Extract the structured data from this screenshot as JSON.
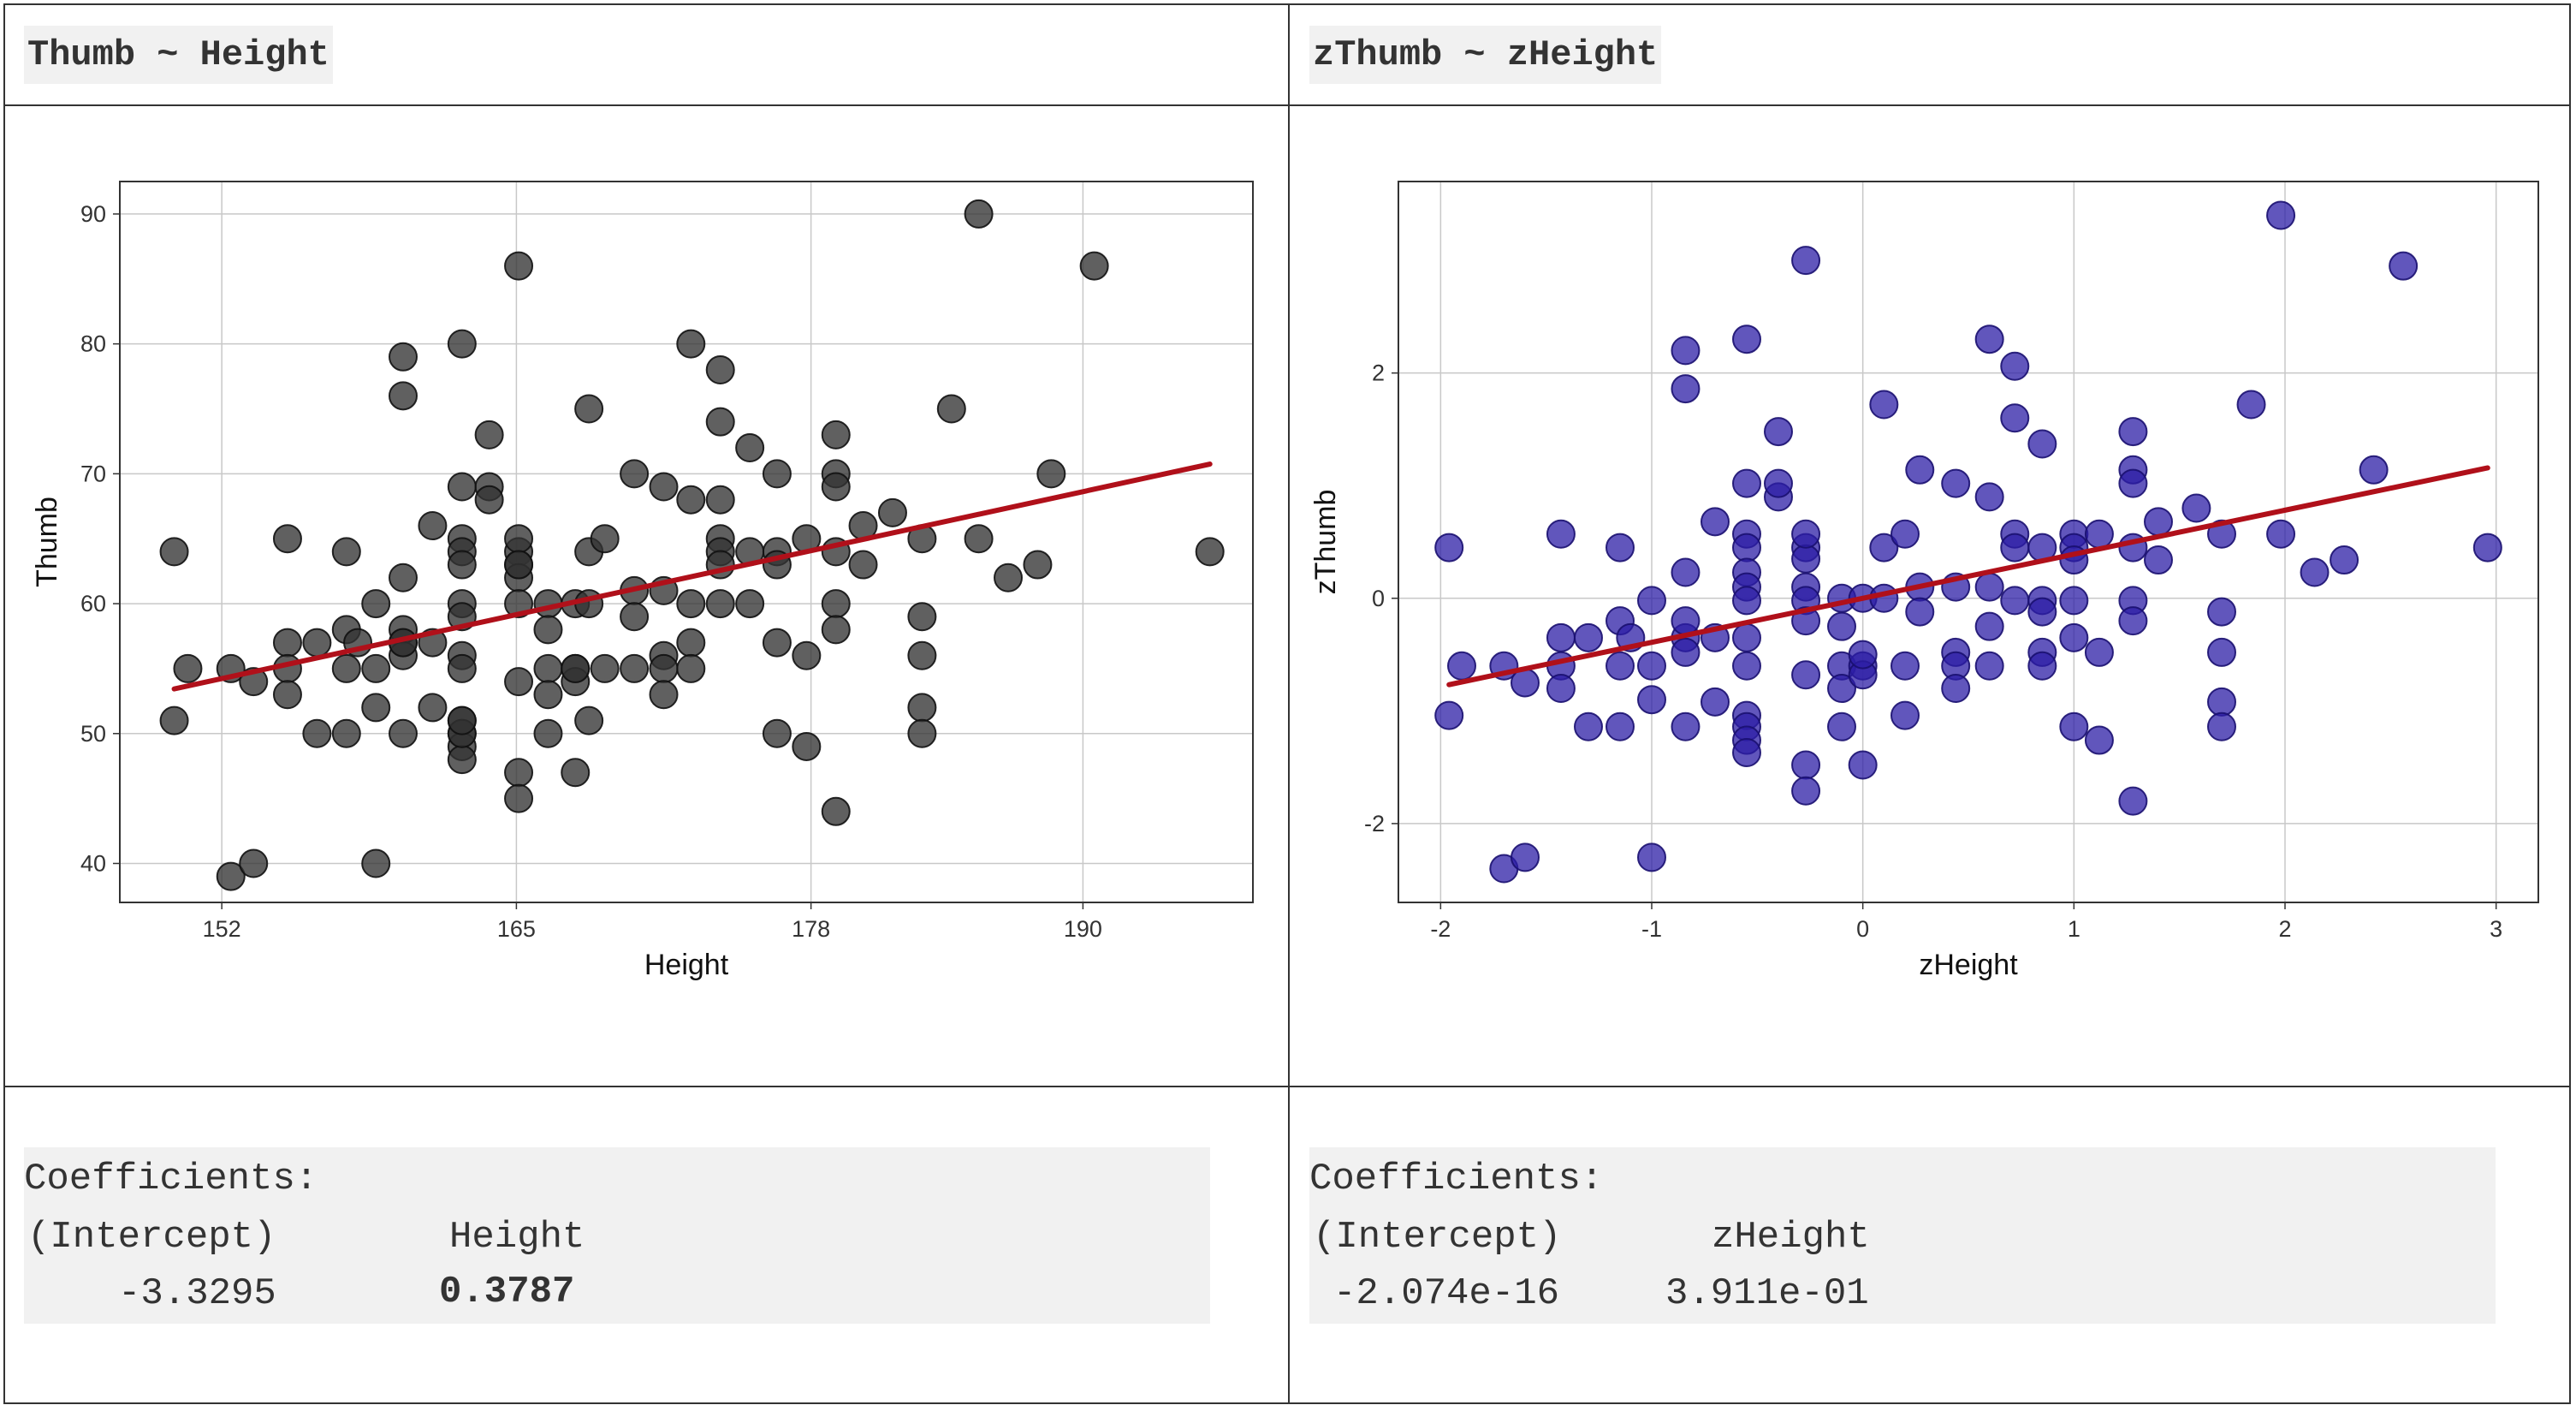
{
  "panels": {
    "left": {
      "title": "Thumb ~ Height",
      "coef": {
        "header": "Coefficients:",
        "col1_label": "(Intercept)",
        "col2_label": "Height",
        "col1_value": "-3.3295",
        "col2_value": "0.3787"
      }
    },
    "right": {
      "title": "zThumb ~ zHeight",
      "coef": {
        "header": "Coefficients:",
        "col1_label": "(Intercept)",
        "col2_label": "zHeight",
        "col1_value": "-2.074e-16",
        "col2_value": "3.911e-01"
      }
    }
  },
  "colors": {
    "left_point": "#333333",
    "right_point": "#2c1ea6",
    "right_point_stroke": "#1a1070",
    "line": "#b0101a"
  },
  "chart_data": [
    {
      "type": "scatter",
      "title": "Thumb ~ Height",
      "xlabel": "Height",
      "ylabel": "Thumb",
      "xlim": [
        147.5,
        197.5
      ],
      "ylim": [
        37,
        92.5
      ],
      "xticks": [
        152,
        165,
        178,
        190
      ],
      "yticks": [
        40,
        50,
        60,
        70,
        80,
        90
      ],
      "fit": {
        "intercept": -3.3295,
        "slope": 0.3787,
        "x_range": [
          149.9,
          195.6
        ]
      },
      "points": [
        [
          149.9,
          64
        ],
        [
          149.9,
          51
        ],
        [
          150.5,
          55
        ],
        [
          152.4,
          39
        ],
        [
          152.4,
          55
        ],
        [
          153.4,
          40
        ],
        [
          153.4,
          54
        ],
        [
          154.9,
          57
        ],
        [
          154.9,
          65
        ],
        [
          154.9,
          55
        ],
        [
          154.9,
          53
        ],
        [
          156.2,
          50
        ],
        [
          156.2,
          57
        ],
        [
          157.5,
          55
        ],
        [
          157.5,
          64
        ],
        [
          157.5,
          58
        ],
        [
          157.5,
          50
        ],
        [
          158,
          57
        ],
        [
          158.8,
          60
        ],
        [
          158.8,
          52
        ],
        [
          158.8,
          55
        ],
        [
          158.8,
          40
        ],
        [
          160,
          79
        ],
        [
          160,
          76
        ],
        [
          160,
          62
        ],
        [
          160,
          57
        ],
        [
          160,
          50
        ],
        [
          160,
          58
        ],
        [
          160,
          56
        ],
        [
          160,
          57
        ],
        [
          161.3,
          66
        ],
        [
          161.3,
          57
        ],
        [
          161.3,
          52
        ],
        [
          162.6,
          80
        ],
        [
          162.6,
          69
        ],
        [
          162.6,
          65
        ],
        [
          162.6,
          64
        ],
        [
          162.6,
          63
        ],
        [
          162.6,
          60
        ],
        [
          162.6,
          59
        ],
        [
          162.6,
          56
        ],
        [
          162.6,
          55
        ],
        [
          162.6,
          51
        ],
        [
          162.6,
          50
        ],
        [
          162.6,
          49
        ],
        [
          162.6,
          48
        ],
        [
          162.6,
          50
        ],
        [
          162.6,
          51
        ],
        [
          163.8,
          73
        ],
        [
          163.8,
          69
        ],
        [
          163.8,
          68
        ],
        [
          165.1,
          86
        ],
        [
          165.1,
          64
        ],
        [
          165.1,
          63
        ],
        [
          165.1,
          62
        ],
        [
          165.1,
          60
        ],
        [
          165.1,
          65
        ],
        [
          165.1,
          47
        ],
        [
          165.1,
          45
        ],
        [
          165.1,
          54
        ],
        [
          165.1,
          63
        ],
        [
          166.4,
          60
        ],
        [
          166.4,
          58
        ],
        [
          166.4,
          55
        ],
        [
          166.4,
          53
        ],
        [
          166.4,
          50
        ],
        [
          167.6,
          60
        ],
        [
          167.6,
          55
        ],
        [
          167.6,
          54
        ],
        [
          167.6,
          47
        ],
        [
          167.6,
          55
        ],
        [
          168.2,
          75
        ],
        [
          168.2,
          64
        ],
        [
          168.2,
          60
        ],
        [
          168.9,
          65
        ],
        [
          168.9,
          55
        ],
        [
          168.2,
          51
        ],
        [
          170.2,
          70
        ],
        [
          170.2,
          61
        ],
        [
          170.2,
          59
        ],
        [
          170.2,
          55
        ],
        [
          171.5,
          69
        ],
        [
          171.5,
          61
        ],
        [
          171.5,
          56
        ],
        [
          171.5,
          55
        ],
        [
          171.5,
          53
        ],
        [
          172.7,
          80
        ],
        [
          172.7,
          68
        ],
        [
          172.7,
          60
        ],
        [
          172.7,
          57
        ],
        [
          172.7,
          55
        ],
        [
          174,
          78
        ],
        [
          174,
          74
        ],
        [
          174,
          68
        ],
        [
          174,
          65
        ],
        [
          174,
          64
        ],
        [
          174,
          63
        ],
        [
          174,
          60
        ],
        [
          175.3,
          72
        ],
        [
          175.3,
          64
        ],
        [
          175.3,
          60
        ],
        [
          176.5,
          70
        ],
        [
          176.5,
          64
        ],
        [
          176.5,
          63
        ],
        [
          176.5,
          57
        ],
        [
          176.5,
          50
        ],
        [
          177.8,
          65
        ],
        [
          177.8,
          56
        ],
        [
          177.8,
          49
        ],
        [
          179.1,
          73
        ],
        [
          179.1,
          70
        ],
        [
          179.1,
          69
        ],
        [
          179.1,
          64
        ],
        [
          179.1,
          60
        ],
        [
          179.1,
          58
        ],
        [
          179.1,
          44
        ],
        [
          180.3,
          66
        ],
        [
          180.3,
          63
        ],
        [
          181.6,
          67
        ],
        [
          182.9,
          65
        ],
        [
          182.9,
          59
        ],
        [
          182.9,
          56
        ],
        [
          182.9,
          52
        ],
        [
          182.9,
          50
        ],
        [
          184.2,
          75
        ],
        [
          185.4,
          90
        ],
        [
          185.4,
          65
        ],
        [
          186.7,
          62
        ],
        [
          188,
          63
        ],
        [
          188.6,
          70
        ],
        [
          190.5,
          86
        ],
        [
          195.6,
          64
        ]
      ]
    },
    {
      "type": "scatter",
      "title": "zThumb ~ zHeight",
      "xlabel": "zHeight",
      "ylabel": "zThumb",
      "xlim": [
        -2.2,
        3.2
      ],
      "ylim": [
        -2.7,
        3.7
      ],
      "xticks": [
        -2,
        -1,
        0,
        1,
        2,
        3
      ],
      "yticks": [
        -2,
        0,
        2
      ],
      "fit": {
        "intercept": 0,
        "slope": 0.3911,
        "x_range": [
          -1.96,
          2.96
        ]
      },
      "points": [
        [
          -1.96,
          0.45
        ],
        [
          -1.96,
          -1.04
        ],
        [
          -1.9,
          -0.6
        ],
        [
          -1.7,
          -2.4
        ],
        [
          -1.7,
          -0.6
        ],
        [
          -1.6,
          -2.3
        ],
        [
          -1.6,
          -0.75
        ],
        [
          -1.43,
          -0.35
        ],
        [
          -1.43,
          0.57
        ],
        [
          -1.43,
          -0.6
        ],
        [
          -1.43,
          -0.8
        ],
        [
          -1.3,
          -1.14
        ],
        [
          -1.3,
          -0.35
        ],
        [
          -1.15,
          -0.6
        ],
        [
          -1.15,
          0.45
        ],
        [
          -1.15,
          -0.2
        ],
        [
          -1.15,
          -1.14
        ],
        [
          -1.1,
          -0.35
        ],
        [
          -1,
          -0.02
        ],
        [
          -1,
          -0.9
        ],
        [
          -1,
          -0.6
        ],
        [
          -1,
          -2.3
        ],
        [
          -0.84,
          2.2
        ],
        [
          -0.84,
          1.86
        ],
        [
          -0.84,
          0.23
        ],
        [
          -0.84,
          -0.35
        ],
        [
          -0.84,
          -1.14
        ],
        [
          -0.84,
          -0.2
        ],
        [
          -0.84,
          -0.48
        ],
        [
          -0.7,
          0.68
        ],
        [
          -0.7,
          -0.35
        ],
        [
          -0.7,
          -0.92
        ],
        [
          -0.55,
          2.3
        ],
        [
          -0.55,
          1.02
        ],
        [
          -0.55,
          0.57
        ],
        [
          -0.55,
          0.45
        ],
        [
          -0.55,
          0.23
        ],
        [
          -0.55,
          0.1
        ],
        [
          -0.55,
          -0.02
        ],
        [
          -0.55,
          -0.35
        ],
        [
          -0.55,
          -0.6
        ],
        [
          -0.55,
          -1.04
        ],
        [
          -0.55,
          -1.14
        ],
        [
          -0.55,
          -1.26
        ],
        [
          -0.55,
          -1.37
        ],
        [
          -0.4,
          1.48
        ],
        [
          -0.4,
          0.9
        ],
        [
          -0.4,
          1.02
        ],
        [
          -0.27,
          3.0
        ],
        [
          -0.27,
          0.45
        ],
        [
          -0.27,
          0.35
        ],
        [
          -0.27,
          0.1
        ],
        [
          -0.27,
          -0.02
        ],
        [
          -0.27,
          0.57
        ],
        [
          -0.27,
          -0.68
        ],
        [
          -0.27,
          -1.48
        ],
        [
          -0.27,
          -1.71
        ],
        [
          -0.27,
          -0.2
        ],
        [
          -0.1,
          0
        ],
        [
          -0.1,
          -0.25
        ],
        [
          -0.1,
          -0.6
        ],
        [
          -0.1,
          -0.8
        ],
        [
          -0.1,
          -1.14
        ],
        [
          0,
          0
        ],
        [
          0,
          -0.6
        ],
        [
          0,
          -0.68
        ],
        [
          0,
          -1.48
        ],
        [
          0,
          -0.5
        ],
        [
          0.1,
          1.72
        ],
        [
          0.1,
          0.45
        ],
        [
          0.1,
          0
        ],
        [
          0.2,
          0.57
        ],
        [
          0.2,
          -0.6
        ],
        [
          0.2,
          -1.04
        ],
        [
          0.27,
          1.14
        ],
        [
          0.27,
          0.1
        ],
        [
          0.27,
          -0.12
        ],
        [
          0.44,
          1.02
        ],
        [
          0.44,
          0.1
        ],
        [
          0.44,
          -0.48
        ],
        [
          0.44,
          -0.6
        ],
        [
          0.44,
          -0.8
        ],
        [
          0.6,
          2.3
        ],
        [
          0.6,
          0.9
        ],
        [
          0.6,
          0.1
        ],
        [
          0.6,
          -0.25
        ],
        [
          0.6,
          -0.6
        ],
        [
          0.72,
          2.06
        ],
        [
          0.72,
          1.6
        ],
        [
          0.72,
          0.57
        ],
        [
          0.72,
          0.45
        ],
        [
          0.72,
          -0.02
        ],
        [
          0.85,
          1.37
        ],
        [
          0.85,
          0.45
        ],
        [
          0.85,
          -0.02
        ],
        [
          0.85,
          -0.12
        ],
        [
          0.85,
          -0.48
        ],
        [
          0.85,
          -0.6
        ],
        [
          1,
          0.57
        ],
        [
          1,
          0.45
        ],
        [
          1,
          0.34
        ],
        [
          1,
          -0.02
        ],
        [
          1,
          -0.35
        ],
        [
          1,
          -1.14
        ],
        [
          1.12,
          -0.48
        ],
        [
          1.12,
          0.57
        ],
        [
          1.12,
          -1.26
        ],
        [
          1.28,
          1.48
        ],
        [
          1.28,
          1.14
        ],
        [
          1.28,
          1.02
        ],
        [
          1.28,
          0.45
        ],
        [
          1.28,
          -0.02
        ],
        [
          1.28,
          -0.2
        ],
        [
          1.28,
          -1.8
        ],
        [
          1.4,
          0.68
        ],
        [
          1.4,
          0.34
        ],
        [
          1.58,
          0.8
        ],
        [
          1.7,
          0.57
        ],
        [
          1.7,
          -0.12
        ],
        [
          1.7,
          -0.48
        ],
        [
          1.7,
          -0.92
        ],
        [
          1.7,
          -1.14
        ],
        [
          1.84,
          1.72
        ],
        [
          1.98,
          3.4
        ],
        [
          1.98,
          0.57
        ],
        [
          2.14,
          0.23
        ],
        [
          2.28,
          0.34
        ],
        [
          2.42,
          1.14
        ],
        [
          2.56,
          2.95
        ],
        [
          2.96,
          0.45
        ]
      ]
    }
  ]
}
